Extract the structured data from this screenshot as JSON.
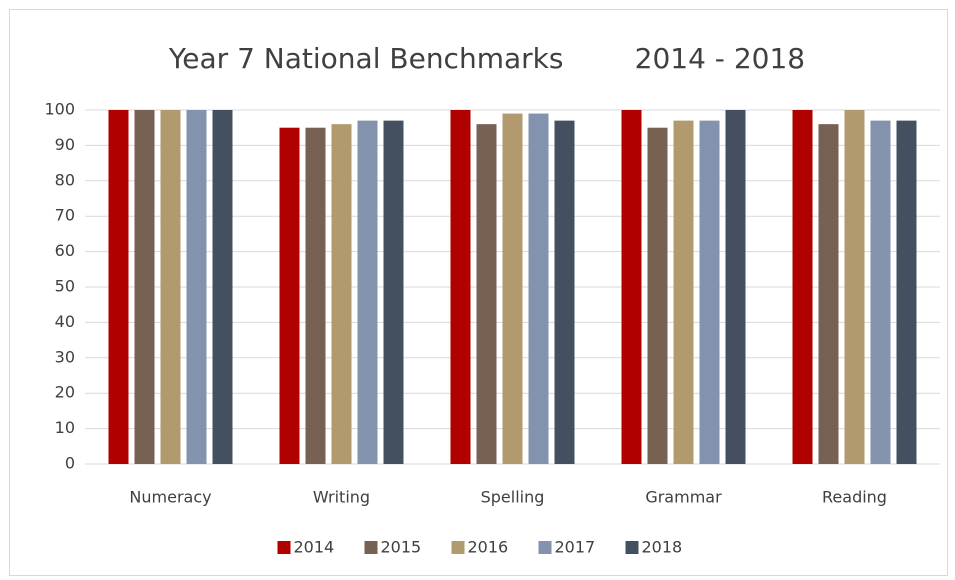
{
  "chart_data": {
    "type": "bar",
    "title": "Year 7 National Benchmarks        2014 - 2018",
    "categories": [
      "Numeracy",
      "Writing",
      "Spelling",
      "Grammar",
      "Reading"
    ],
    "series": [
      {
        "name": "2014",
        "color": "#b00000",
        "values": [
          100,
          95,
          100,
          100,
          100
        ]
      },
      {
        "name": "2015",
        "color": "#766153",
        "values": [
          100,
          95,
          96,
          95,
          96
        ]
      },
      {
        "name": "2016",
        "color": "#b09a6e",
        "values": [
          100,
          96,
          99,
          97,
          100
        ]
      },
      {
        "name": "2017",
        "color": "#8393ad",
        "values": [
          100,
          97,
          99,
          97,
          97
        ]
      },
      {
        "name": "2018",
        "color": "#44505f",
        "values": [
          100,
          97,
          97,
          100,
          97
        ]
      }
    ],
    "ylim": [
      0,
      100
    ],
    "yticks": [
      0,
      10,
      20,
      30,
      40,
      50,
      60,
      70,
      80,
      90,
      100
    ],
    "grid": true,
    "legend": "bottom"
  }
}
